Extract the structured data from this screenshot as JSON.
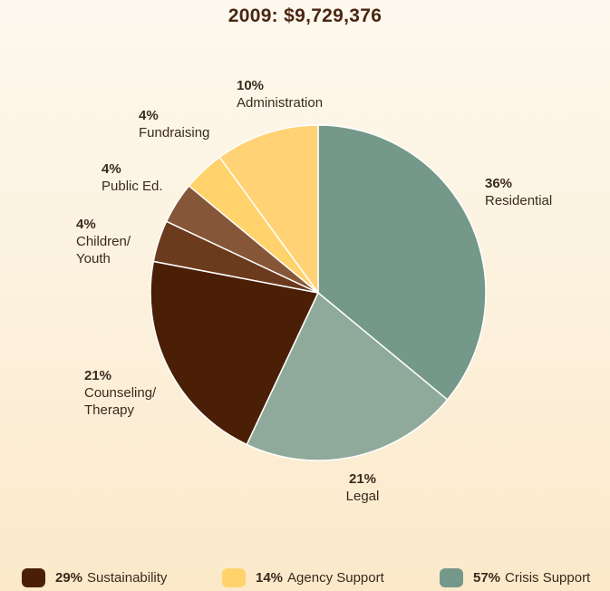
{
  "chart_data": {
    "type": "pie",
    "title": "2009: $9,729,376",
    "slices": [
      {
        "label": "Residential",
        "value": 36,
        "percent_label": "36%",
        "color": "#74988a"
      },
      {
        "label": "Legal",
        "value": 21,
        "percent_label": "21%",
        "color": "#8faa9b"
      },
      {
        "label": "Counseling/\nTherapy",
        "value": 21,
        "percent_label": "21%",
        "color": "#4a1f06"
      },
      {
        "label": "Children/\nYouth",
        "value": 4,
        "percent_label": "4%",
        "color": "#6c3a1c"
      },
      {
        "label": "Public Ed.",
        "value": 4,
        "percent_label": "4%",
        "color": "#855638"
      },
      {
        "label": "Fundraising",
        "value": 4,
        "percent_label": "4%",
        "color": "#ffd26c"
      },
      {
        "label": "Administration",
        "value": 10,
        "percent_label": "10%",
        "color": "#ffd275"
      }
    ],
    "legend": [
      {
        "percent": "29%",
        "label": "Sustainability",
        "color": "#4a1f06"
      },
      {
        "percent": "14%",
        "label": "Agency Support",
        "color": "#ffd26c"
      },
      {
        "percent": "57%",
        "label": "Crisis Support",
        "color": "#74988a"
      }
    ],
    "legend_position": "bottom"
  }
}
